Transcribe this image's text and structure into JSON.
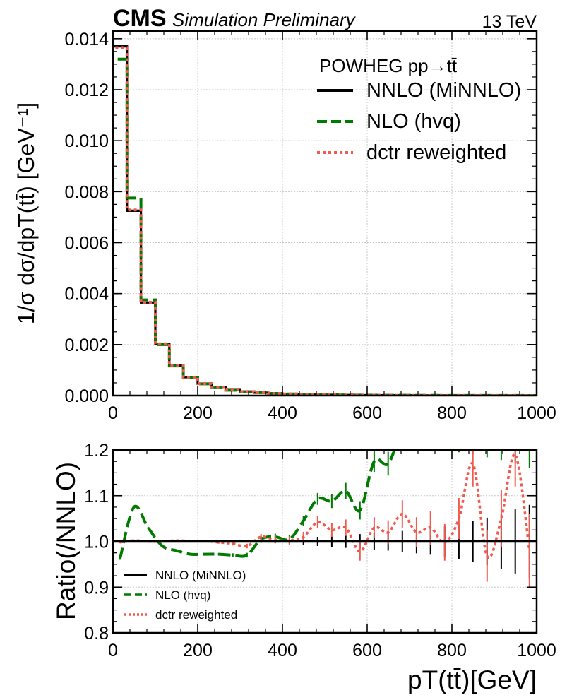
{
  "header": {
    "cms": "CMS",
    "status": "Simulation Preliminary",
    "energy": "13 TeV"
  },
  "colors": {
    "nnlo": "#000000",
    "nlo": "#007a00",
    "dctr": "#f05a4f",
    "grid": "#c8c8c8"
  },
  "chart_data": [
    {
      "type": "line",
      "drawstyle": "steps",
      "ylabel": "1/σ dσ/dpT(tt̄) [GeV⁻¹]",
      "xlim": [
        0,
        1000
      ],
      "ylim": [
        0,
        0.0143
      ],
      "xticks": [
        "0",
        "200",
        "400",
        "600",
        "800",
        "1000"
      ],
      "yticks": [
        "0.000",
        "0.002",
        "0.004",
        "0.006",
        "0.008",
        "0.010",
        "0.012",
        "0.014"
      ],
      "grid": true,
      "legend": {
        "title": "POWHEG pp→tt̄",
        "placement": "top-right",
        "entries": [
          "NNLO (MiNNLO)",
          "NLO (hvq)",
          "dctr reweighted"
        ]
      },
      "bin_edges": [
        0,
        33,
        66,
        100,
        133,
        166,
        200,
        233,
        266,
        300,
        333,
        366,
        400,
        433,
        466,
        500,
        533,
        566,
        600,
        633,
        666,
        700,
        733,
        766,
        800,
        833,
        866,
        900,
        933,
        966,
        1000
      ],
      "series": [
        {
          "name": "NNLO (MiNNLO)",
          "style": "solid",
          "values": [
            0.0137,
            0.00725,
            0.00365,
            0.00203,
            0.00118,
            0.00072,
            0.00047,
            0.00032,
            0.00022,
            0.000155,
            0.000112,
            8.2e-05,
            6.1e-05,
            4.6e-05,
            3.5e-05,
            2.7e-05,
            2.1e-05,
            1.6e-05,
            1.25e-05,
            9.8e-06,
            7.7e-06,
            6e-06,
            4.8e-06,
            3.8e-06,
            3e-06,
            2.4e-06,
            1.9e-06,
            1.5e-06,
            1.2e-06,
            1e-06
          ]
        },
        {
          "name": "NLO (hvq)",
          "style": "dashed",
          "values": [
            0.0132,
            0.00775,
            0.00375,
            0.002,
            0.00116,
            0.0007,
            0.00046,
            0.00031,
            0.00021,
            0.00015,
            0.000113,
            8.3e-05,
            6.2e-05,
            4.8e-05,
            3.8e-05,
            3e-05,
            2.3e-05,
            1.8e-05,
            1.4e-05,
            1.2e-05,
            9e-06,
            7.5e-06,
            6e-06,
            5e-06,
            4e-06,
            3.3e-06,
            2.7e-06,
            2.2e-06,
            1.8e-06,
            1.5e-06
          ]
        },
        {
          "name": "dctr reweighted",
          "style": "dotted",
          "values": [
            0.01365,
            0.00728,
            0.00366,
            0.00203,
            0.00118,
            0.00072,
            0.00047,
            0.00032,
            0.00022,
            0.000155,
            0.000113,
            8.2e-05,
            6.1e-05,
            4.7e-05,
            3.6e-05,
            2.8e-05,
            2.1e-05,
            1.6e-05,
            1.25e-05,
            9.9e-06,
            7.8e-06,
            6e-06,
            4.9e-06,
            3.8e-06,
            3e-06,
            2.4e-06,
            1.9e-06,
            1.5e-06,
            1.2e-06,
            1e-06
          ]
        }
      ]
    },
    {
      "type": "line",
      "xlabel": "pT(tt̄)[GeV]",
      "ylabel": "Ratio(/NNLO)",
      "xlim": [
        0,
        1000
      ],
      "ylim": [
        0.8,
        1.2
      ],
      "xticks": [
        "0",
        "200",
        "400",
        "600",
        "800",
        "1000"
      ],
      "yticks": [
        "0.8",
        "0.9",
        "1.0",
        "1.1",
        "1.2"
      ],
      "grid": true,
      "legend": {
        "placement": "bottom-left",
        "entries": [
          "NNLO (MiNNLO)",
          "NLO (hvq)",
          "dctr reweighted"
        ]
      },
      "x": [
        16.5,
        49.5,
        83,
        116.5,
        149.5,
        183,
        216.5,
        249.5,
        283,
        316.5,
        349.5,
        383,
        416.5,
        449.5,
        483,
        516.5,
        549.5,
        583,
        616.5,
        649.5,
        683,
        716.5,
        749.5,
        783,
        816.5,
        849.5,
        883,
        916.5,
        949.5,
        983
      ],
      "series": [
        {
          "name": "NNLO (MiNNLO)",
          "style": "solid",
          "values": [
            1,
            1,
            1,
            1,
            1,
            1,
            1,
            1,
            1,
            1,
            1,
            1,
            1,
            1,
            1,
            1,
            1,
            1,
            1,
            1,
            1,
            1,
            1,
            1,
            1,
            1,
            1,
            1,
            1,
            1
          ],
          "errors": [
            0.001,
            0.001,
            0.001,
            0.001,
            0.001,
            0.001,
            0.001,
            0.001,
            0.001,
            0.002,
            0.003,
            0.004,
            0.006,
            0.008,
            0.01,
            0.012,
            0.014,
            0.016,
            0.018,
            0.02,
            0.023,
            0.026,
            0.029,
            0.033,
            0.038,
            0.044,
            0.052,
            0.06,
            0.07,
            0.08
          ]
        },
        {
          "name": "NLO (hvq)",
          "style": "dashed",
          "values": [
            0.962,
            1.075,
            1.03,
            0.99,
            0.98,
            0.972,
            0.972,
            0.972,
            0.97,
            0.97,
            1.005,
            1.01,
            1.005,
            1.045,
            1.093,
            1.088,
            1.11,
            1.068,
            1.175,
            1.17,
            1.24,
            1.24,
            1.24,
            1.24,
            1.24,
            1.24,
            1.24,
            1.24,
            1.24,
            1.24
          ],
          "errors": [
            0.002,
            0.002,
            0.002,
            0.002,
            0.002,
            0.002,
            0.002,
            0.003,
            0.004,
            0.005,
            0.006,
            0.007,
            0.009,
            0.011,
            0.013,
            0.015,
            0.018,
            0.02,
            0.023,
            0.026,
            0.03,
            0.033,
            0.037,
            0.04,
            0.045,
            0.05,
            0.056,
            0.062,
            0.07,
            0.08
          ]
        },
        {
          "name": "dctr reweighted",
          "style": "dotted",
          "values": [
            0.998,
            1.002,
            1.0,
            1.0,
            1.002,
            1.001,
            1.001,
            0.998,
            0.995,
            0.99,
            1.01,
            1.003,
            1.002,
            1.01,
            1.042,
            1.025,
            1.03,
            0.978,
            1.03,
            1.02,
            1.06,
            1.02,
            1.03,
            0.998,
            1.05,
            1.17,
            0.968,
            1.05,
            1.19,
            0.98
          ],
          "errors": [
            0.002,
            0.002,
            0.002,
            0.002,
            0.002,
            0.002,
            0.002,
            0.003,
            0.004,
            0.005,
            0.006,
            0.007,
            0.009,
            0.011,
            0.013,
            0.015,
            0.018,
            0.02,
            0.023,
            0.026,
            0.03,
            0.033,
            0.037,
            0.04,
            0.045,
            0.05,
            0.056,
            0.062,
            0.07,
            0.08
          ]
        }
      ]
    }
  ]
}
